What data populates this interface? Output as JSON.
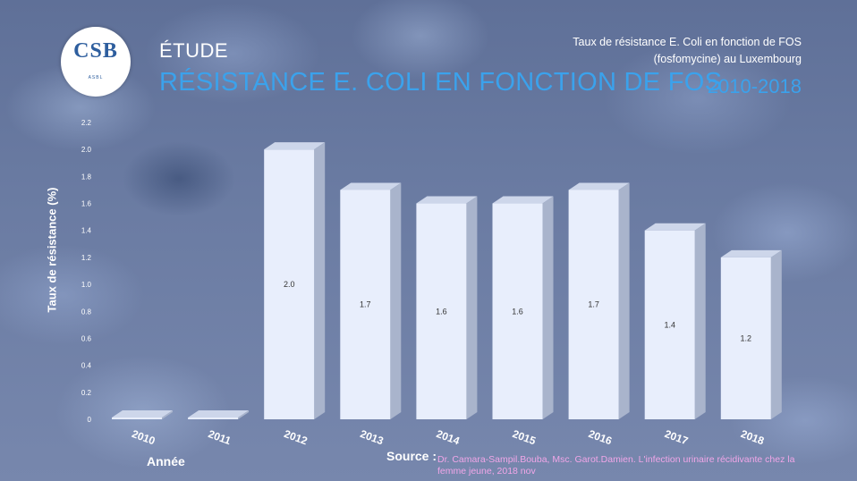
{
  "header": {
    "logo_text": "CSB",
    "logo_sub": "ASBL",
    "kicker": "ÉTUDE",
    "title": "RÉSISTANCE E. COLI EN FONCTION DE FOS",
    "subtitle_line1": "Taux de résistance E. Coli en fonction de FOS",
    "subtitle_line2": "(fosfomycine) au Luxembourg",
    "years": "2010-2018"
  },
  "source": {
    "label": "Source :",
    "text": "Dr. Camara-Sampil.Bouba, Msc. Garot.Damien. L'infection urinaire récidivante chez la femme jeune, 2018 nov"
  },
  "colors": {
    "title_accent": "#3ba2ec",
    "bar_front": "#e8eefc",
    "bar_side": "#a9b4cc",
    "bar_top": "#cdd6ea",
    "source_text": "#f1a6e8"
  },
  "chart_data": {
    "type": "bar",
    "categories": [
      "2010",
      "2011",
      "2012",
      "2013",
      "2014",
      "2015",
      "2016",
      "2017",
      "2018"
    ],
    "values": [
      0,
      0,
      2.0,
      1.7,
      1.6,
      1.6,
      1.7,
      1.4,
      1.2
    ],
    "data_labels": [
      "",
      "",
      "2.0",
      "1.7",
      "1.6",
      "1.6",
      "1.7",
      "1.4",
      "1.2"
    ],
    "ylabel": "Taux de résistance (%)",
    "xlabel": "Année",
    "ylim": [
      0,
      2.2
    ],
    "yticks": [
      "0",
      "0.2",
      "0.4",
      "0.6",
      "0.8",
      "1.0",
      "1.2",
      "1.4",
      "1.6",
      "1.8",
      "2.0",
      "2.2"
    ],
    "grid": false,
    "legend": "none"
  }
}
